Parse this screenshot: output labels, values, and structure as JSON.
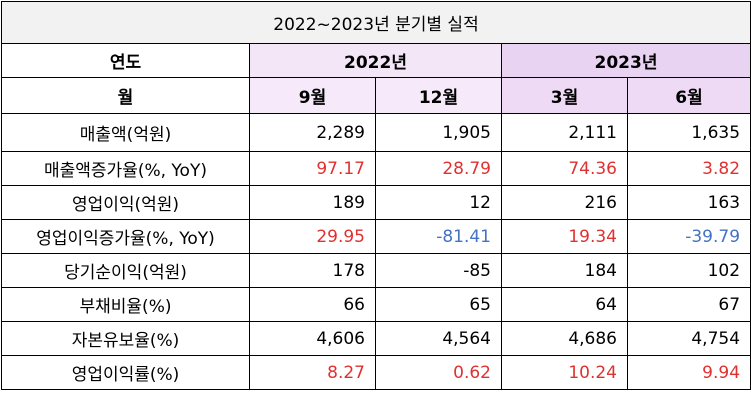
{
  "title": "2022~2023년 분기별 실적",
  "header": {
    "year_label": "연도",
    "year_2022": "2022년",
    "year_2023": "2023년",
    "month_label": "월",
    "months": [
      "9월",
      "12월",
      "3월",
      "6월"
    ]
  },
  "rows": [
    {
      "label": "매출액(억원)",
      "values": [
        "2,289",
        "1,905",
        "2,111",
        "1,635"
      ],
      "colored": false
    },
    {
      "label": "매출액증가율(%, YoY)",
      "values": [
        "97.17",
        "28.79",
        "74.36",
        "3.82"
      ],
      "colored": true
    },
    {
      "label": "영업이익(억원)",
      "values": [
        "189",
        "12",
        "216",
        "163"
      ],
      "colored": false
    },
    {
      "label": "영업이익증가율(%, YoY)",
      "values": [
        "29.95",
        "-81.41",
        "19.34",
        "-39.79"
      ],
      "colored": true
    },
    {
      "label": "당기순이익(억원)",
      "values": [
        "178",
        "-85",
        "184",
        "102"
      ],
      "colored": false
    },
    {
      "label": "부채비율(%)",
      "values": [
        "66",
        "65",
        "64",
        "67"
      ],
      "colored": false
    },
    {
      "label": "자본유보율(%)",
      "values": [
        "4,606",
        "4,564",
        "4,686",
        "4,754"
      ],
      "colored": false
    },
    {
      "label": "영업이익률(%)",
      "values": [
        "8.27",
        "0.62",
        "10.24",
        "9.94"
      ],
      "colored": true
    }
  ],
  "colors": {
    "positive": "#e03131",
    "negative": "#4472c4"
  }
}
